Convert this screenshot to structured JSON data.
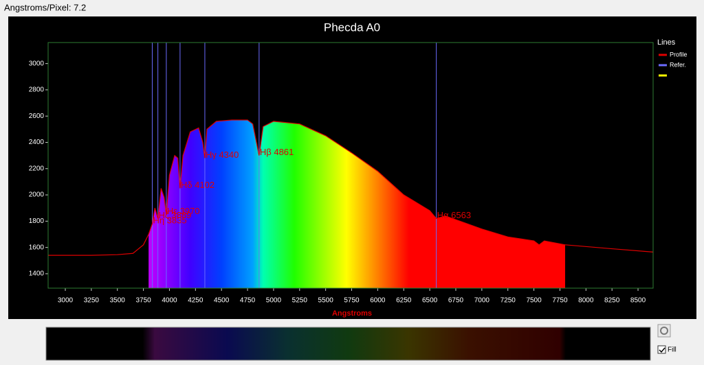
{
  "toolbar": {
    "label": "Angstroms/Pixel: 7.2"
  },
  "controls": {
    "fill_label": "Fill",
    "fill_checked": true
  },
  "chart_data": {
    "type": "line",
    "title": "Phecda A0",
    "x_label": "Angstroms",
    "legend_title": "Lines",
    "legend": "upper right",
    "x": [
      2835,
      3000,
      3250,
      3500,
      3650,
      3750,
      3800,
      3835,
      3860,
      3889,
      3920,
      3950,
      3970,
      4000,
      4050,
      4080,
      4102,
      4130,
      4200,
      4280,
      4320,
      4340,
      4360,
      4450,
      4600,
      4750,
      4800,
      4861,
      4900,
      5000,
      5250,
      5500,
      5750,
      6000,
      6250,
      6500,
      6563,
      6650,
      7000,
      7250,
      7500,
      7550,
      7600,
      7800,
      8250,
      8645
    ],
    "series": [
      {
        "name": "Profile",
        "color": "#e00000",
        "values": [
          1540,
          1540,
          1540,
          1545,
          1555,
          1620,
          1700,
          1780,
          1900,
          1820,
          2050,
          1980,
          1850,
          2150,
          2300,
          2280,
          2050,
          2300,
          2480,
          2510,
          2400,
          2280,
          2500,
          2560,
          2570,
          2570,
          2540,
          2300,
          2520,
          2560,
          2540,
          2450,
          2320,
          2180,
          2000,
          1880,
          1820,
          1840,
          1740,
          1680,
          1650,
          1620,
          1650,
          1620,
          1590,
          1565
        ]
      }
    ],
    "reference_lines": {
      "name": "Refer.",
      "color": "#6b6bff",
      "x": [
        3835,
        3889,
        3970,
        4102,
        4340,
        4861,
        6563
      ],
      "labels": [
        "Hη 3835",
        "Hζ 3889",
        "Hε 3970",
        "Hδ 4102",
        "Hγ 4340",
        "Hβ 4861",
        "Hα 6563"
      ]
    },
    "fill_xlim": [
      3800,
      7800
    ],
    "xlim": [
      2835,
      8645
    ],
    "ylim": [
      1290,
      3160
    ],
    "xticks": [
      3000,
      3250,
      3500,
      3750,
      4000,
      4250,
      4500,
      4750,
      5000,
      5250,
      5500,
      5750,
      6000,
      6250,
      6500,
      6750,
      7000,
      7250,
      7500,
      7750,
      8000,
      8250,
      8500
    ],
    "yticks": [
      1400,
      1600,
      1800,
      2000,
      2200,
      2400,
      2600,
      2800,
      3000
    ]
  }
}
